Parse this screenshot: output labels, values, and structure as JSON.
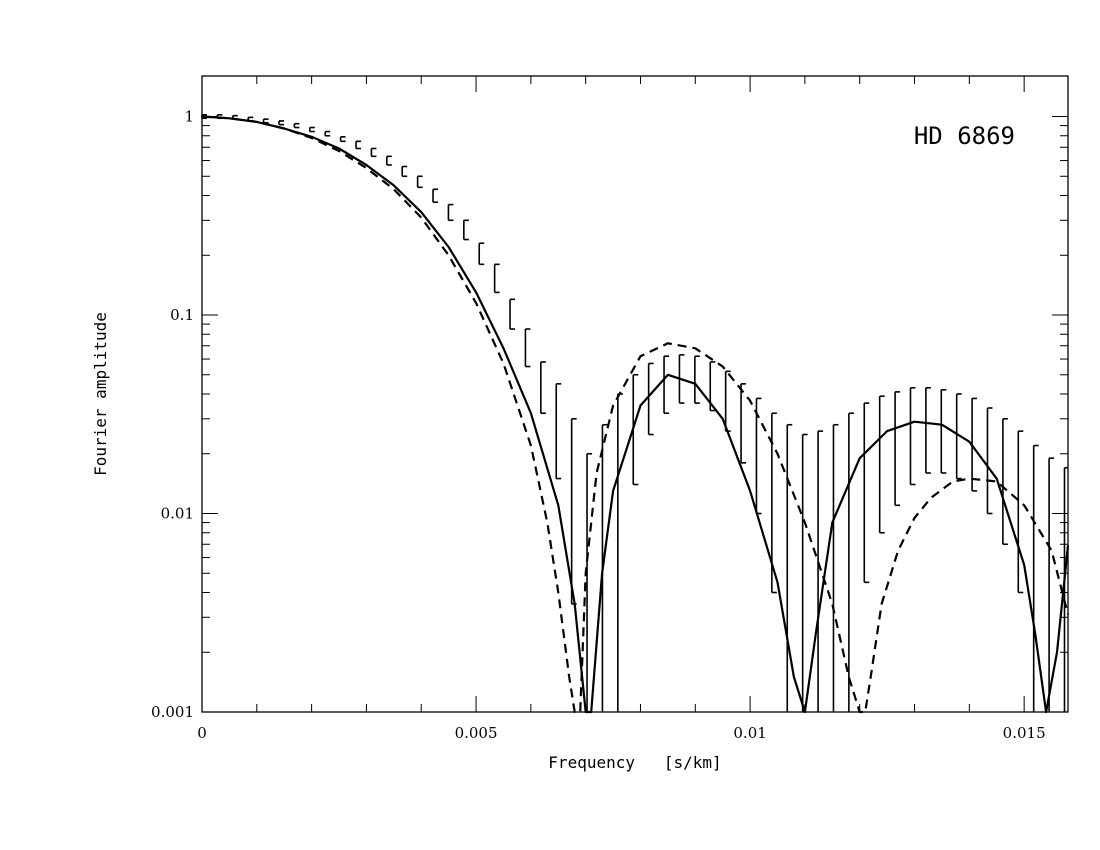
{
  "chart_data": {
    "type": "line",
    "title": "",
    "annotation": "HD 6869",
    "xlabel": "Frequency   [s/km]",
    "ylabel": "Fourier amplitude",
    "xlim": [
      0,
      0.0158
    ],
    "ylim": [
      0.001,
      1.6
    ],
    "yscale": "log",
    "x_ticks": [
      0,
      0.005,
      0.01,
      0.015
    ],
    "x_tick_labels": [
      "0",
      "0.005",
      "0.01",
      "0.015"
    ],
    "y_ticks": [
      0.001,
      0.01,
      0.1,
      1
    ],
    "y_tick_labels": [
      "0.001",
      "0.01",
      "0.1",
      "1"
    ],
    "grid": false,
    "legend": "none",
    "series": [
      {
        "style": "solid",
        "x": [
          0,
          0.0005,
          0.001,
          0.0015,
          0.002,
          0.0025,
          0.003,
          0.0035,
          0.004,
          0.0045,
          0.005,
          0.0055,
          0.006,
          0.0065,
          0.0068,
          0.007,
          0.0071,
          0.0073,
          0.0075,
          0.008,
          0.0085,
          0.009,
          0.0095,
          0.01,
          0.0105,
          0.0108,
          0.011,
          0.0112,
          0.0115,
          0.012,
          0.0125,
          0.013,
          0.0135,
          0.014,
          0.0145,
          0.015,
          0.0152,
          0.0154,
          0.0156,
          0.0158
        ],
        "y": [
          1,
          0.98,
          0.94,
          0.87,
          0.79,
          0.69,
          0.57,
          0.45,
          0.33,
          0.22,
          0.13,
          0.068,
          0.032,
          0.011,
          0.0035,
          0.001,
          0.001,
          0.005,
          0.013,
          0.035,
          0.05,
          0.045,
          0.03,
          0.013,
          0.0045,
          0.0015,
          0.001,
          0.0025,
          0.009,
          0.019,
          0.026,
          0.029,
          0.028,
          0.023,
          0.015,
          0.0055,
          0.0025,
          0.001,
          0.002,
          0.0069
        ]
      },
      {
        "style": "dashed",
        "x": [
          0,
          0.0005,
          0.001,
          0.0015,
          0.002,
          0.0025,
          0.003,
          0.0035,
          0.004,
          0.0045,
          0.005,
          0.0055,
          0.006,
          0.0063,
          0.0065,
          0.0067,
          0.0068,
          0.0069,
          0.007,
          0.0072,
          0.0075,
          0.008,
          0.0085,
          0.009,
          0.0095,
          0.01,
          0.0105,
          0.011,
          0.0115,
          0.0118,
          0.012,
          0.0121,
          0.0122,
          0.0124,
          0.0127,
          0.013,
          0.0133,
          0.0137,
          0.014,
          0.0145,
          0.015,
          0.0155,
          0.0158
        ],
        "y": [
          1,
          0.98,
          0.94,
          0.87,
          0.78,
          0.67,
          0.55,
          0.43,
          0.31,
          0.2,
          0.115,
          0.057,
          0.022,
          0.009,
          0.004,
          0.0015,
          0.001,
          0.001,
          0.005,
          0.016,
          0.035,
          0.062,
          0.072,
          0.068,
          0.055,
          0.037,
          0.02,
          0.009,
          0.0035,
          0.0015,
          0.001,
          0.001,
          0.0015,
          0.0035,
          0.0065,
          0.0095,
          0.012,
          0.0145,
          0.015,
          0.0145,
          0.011,
          0.0065,
          0.0031
        ]
      }
    ],
    "error_bars": {
      "x": [
        0,
        0.000281,
        0.000562,
        0.000843,
        0.001124,
        0.001405,
        0.001686,
        0.001967,
        0.002248,
        0.002529,
        0.00281,
        0.003091,
        0.003372,
        0.003653,
        0.003934,
        0.004215,
        0.004496,
        0.004777,
        0.005058,
        0.005339,
        0.00562,
        0.005901,
        0.006182,
        0.006463,
        0.006744,
        0.007025,
        0.007306,
        0.007587,
        0.007868,
        0.008149,
        0.00843,
        0.008711,
        0.008992,
        0.009273,
        0.009554,
        0.009835,
        0.010116,
        0.010397,
        0.010678,
        0.010959,
        0.01124,
        0.011521,
        0.011802,
        0.012083,
        0.012364,
        0.012645,
        0.012926,
        0.013207,
        0.013488,
        0.013769,
        0.01405,
        0.014331,
        0.014612,
        0.014893,
        0.015174,
        0.015455,
        0.015736
      ],
      "y": [
        1,
        1,
        0.99,
        0.97,
        0.95,
        0.93,
        0.9,
        0.86,
        0.82,
        0.77,
        0.72,
        0.66,
        0.6,
        0.53,
        0.47,
        0.4,
        0.33,
        0.27,
        0.2,
        0.15,
        0.1,
        0.068,
        0.043,
        0.025,
        0.011,
        0.002,
        0.009,
        0.022,
        0.034,
        0.042,
        0.048,
        0.05,
        0.048,
        0.044,
        0.037,
        0.029,
        0.021,
        0.013,
        0.0065,
        0.0025,
        0.0038,
        0.008,
        0.013,
        0.018,
        0.022,
        0.025,
        0.028,
        0.029,
        0.029,
        0.028,
        0.026,
        0.023,
        0.02,
        0.015,
        0.011,
        0.0065,
        0.005
      ],
      "err_hi": [
        1.02,
        1.02,
        1.01,
        0.99,
        0.97,
        0.95,
        0.92,
        0.88,
        0.84,
        0.79,
        0.75,
        0.69,
        0.63,
        0.56,
        0.5,
        0.43,
        0.36,
        0.3,
        0.23,
        0.18,
        0.12,
        0.085,
        0.058,
        0.045,
        0.03,
        0.02,
        0.028,
        0.04,
        0.05,
        0.057,
        0.062,
        0.063,
        0.062,
        0.058,
        0.052,
        0.045,
        0.038,
        0.032,
        0.028,
        0.025,
        0.026,
        0.028,
        0.032,
        0.036,
        0.039,
        0.041,
        0.043,
        0.043,
        0.042,
        0.04,
        0.038,
        0.034,
        0.03,
        0.026,
        0.022,
        0.019,
        0.017
      ],
      "err_lo": [
        0.98,
        0.98,
        0.97,
        0.95,
        0.93,
        0.91,
        0.88,
        0.84,
        0.8,
        0.75,
        0.69,
        0.63,
        0.57,
        0.5,
        0.44,
        0.37,
        0.3,
        0.24,
        0.18,
        0.13,
        0.085,
        0.055,
        0.032,
        0.015,
        0.0035,
        0.001,
        0.001,
        0.001,
        0.014,
        0.025,
        0.032,
        0.036,
        0.036,
        0.033,
        0.026,
        0.018,
        0.01,
        0.004,
        0.001,
        0.001,
        0.001,
        0.001,
        0.001,
        0.0045,
        0.008,
        0.011,
        0.014,
        0.016,
        0.016,
        0.015,
        0.013,
        0.01,
        0.007,
        0.004,
        0.001,
        0.001,
        0.001
      ]
    }
  }
}
